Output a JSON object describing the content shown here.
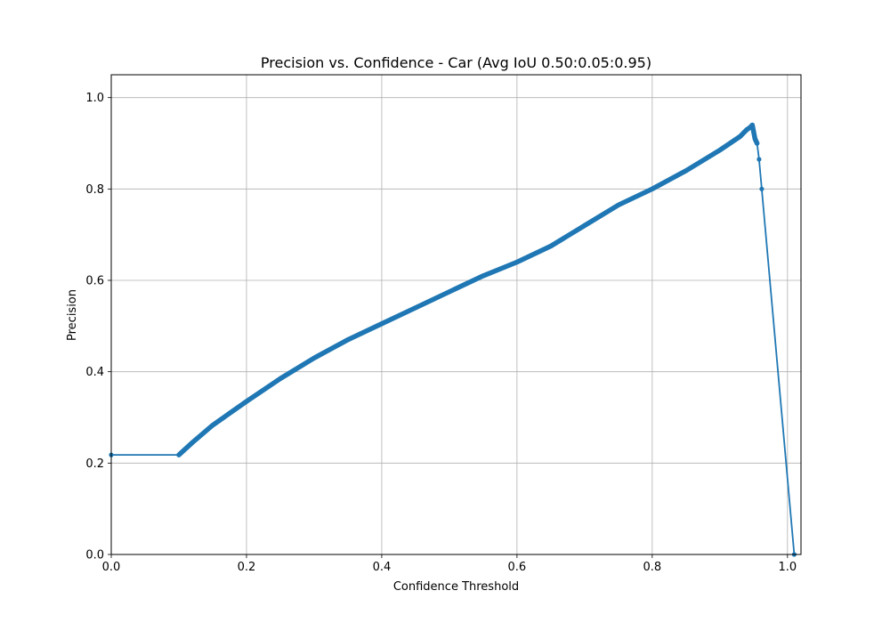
{
  "chart_data": {
    "type": "line",
    "title": "Precision vs. Confidence - Car (Avg IoU 0.50:0.05:0.95)",
    "xlabel": "Confidence Threshold",
    "ylabel": "Precision",
    "xlim": [
      0.0,
      1.02
    ],
    "ylim": [
      0.0,
      1.05
    ],
    "xticks": [
      0.0,
      0.2,
      0.4,
      0.6,
      0.8,
      1.0
    ],
    "xtick_labels": [
      "0.0",
      "0.2",
      "0.4",
      "0.6",
      "0.8",
      "1.0"
    ],
    "yticks": [
      0.0,
      0.2,
      0.4,
      0.6,
      0.8,
      1.0
    ],
    "ytick_labels": [
      "0.0",
      "0.2",
      "0.4",
      "0.6",
      "0.8",
      "1.0"
    ],
    "grid": true,
    "series": [
      {
        "color": "#1f77b4",
        "marker": "dot",
        "x": [
          0.0,
          0.1,
          0.12,
          0.15,
          0.2,
          0.25,
          0.3,
          0.35,
          0.4,
          0.45,
          0.5,
          0.55,
          0.6,
          0.65,
          0.7,
          0.75,
          0.8,
          0.85,
          0.9,
          0.93,
          0.94,
          0.945,
          0.948,
          0.95,
          0.952,
          0.955,
          0.958,
          0.962,
          1.01
        ],
        "y": [
          0.218,
          0.218,
          0.245,
          0.283,
          0.335,
          0.385,
          0.43,
          0.47,
          0.505,
          0.54,
          0.575,
          0.61,
          0.64,
          0.675,
          0.72,
          0.765,
          0.8,
          0.84,
          0.885,
          0.915,
          0.93,
          0.935,
          0.94,
          0.925,
          0.91,
          0.9,
          0.865,
          0.8,
          0.0
        ]
      }
    ]
  }
}
